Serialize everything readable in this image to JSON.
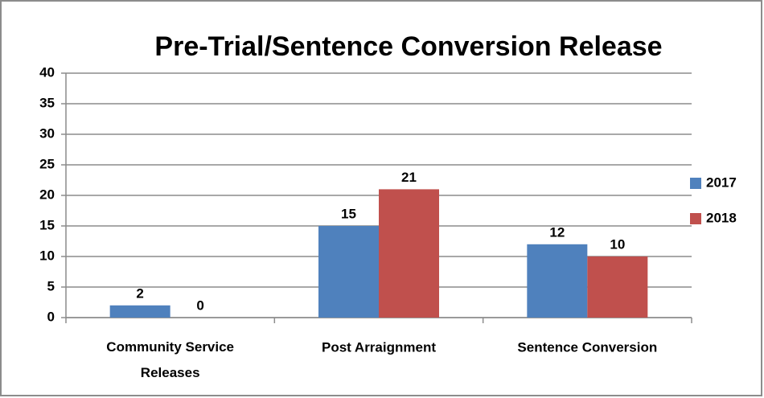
{
  "chart_data": {
    "type": "bar",
    "title": "Pre-Trial/Sentence Conversion Release",
    "categories": [
      "Community Service Releases",
      "Post Arraignment",
      "Sentence Conversion"
    ],
    "series": [
      {
        "name": "2017",
        "color": "#4f81bd",
        "values": [
          2,
          15,
          12
        ]
      },
      {
        "name": "2018",
        "color": "#c0504d",
        "values": [
          0,
          21,
          10
        ]
      }
    ],
    "ylim": [
      0,
      40
    ],
    "yticks": [
      0,
      5,
      10,
      15,
      20,
      25,
      30,
      35,
      40
    ],
    "grid": true,
    "legend": "right"
  }
}
